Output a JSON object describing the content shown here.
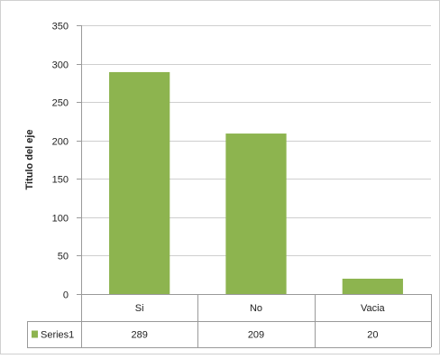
{
  "chart_data": {
    "type": "bar",
    "ylabel": "Titulo del eje",
    "categories": [
      "Si",
      "No",
      "Vacia"
    ],
    "series": [
      {
        "name": "Series1",
        "values": [
          289,
          209,
          20
        ],
        "color": "#8db44f"
      }
    ],
    "ylim": [
      0,
      350
    ],
    "yticks": [
      0,
      50,
      100,
      150,
      200,
      250,
      300,
      350
    ],
    "grid": true,
    "data_table": true,
    "legend_key_color": "#8db44f"
  }
}
